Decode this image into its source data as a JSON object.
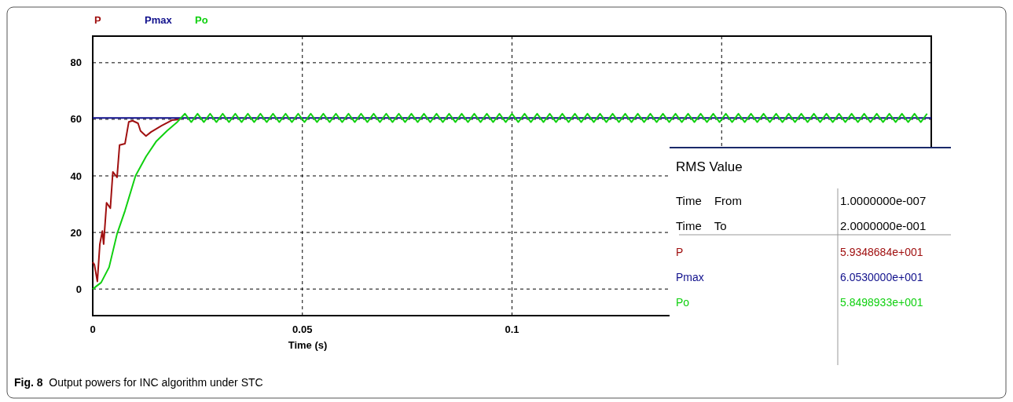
{
  "chart_data": {
    "type": "line",
    "xlabel": "Time (s)",
    "xlim": [
      0,
      0.2
    ],
    "ylim": [
      -9.4,
      89.4
    ],
    "xticks": [
      0,
      0.05,
      0.1,
      {
        "value": 0.15,
        "label": null
      }
    ],
    "yticks": [
      0,
      20,
      40,
      60,
      80
    ],
    "grid": true,
    "legend": "top left",
    "line_style": "solid",
    "marker": "none",
    "series": [
      {
        "name": "P",
        "color": "#a01010",
        "x": [
          0,
          0.0004,
          0.0011,
          0.0017,
          0.0023,
          0.0026,
          0.0033,
          0.0042,
          0.0048,
          0.0058,
          0.0064,
          0.0077,
          0.0086,
          0.0095,
          0.0108,
          0.0114,
          0.0127,
          0.0139,
          0.0164,
          0.0189,
          0.0208
        ],
        "values": [
          9.5,
          8.6,
          2.7,
          15.9,
          20.5,
          15.9,
          30.5,
          28.6,
          41.4,
          39.5,
          50.9,
          51.4,
          59.1,
          59.5,
          58.6,
          55.9,
          54.1,
          55.5,
          57.7,
          59.7,
          60
        ]
      },
      {
        "name": "Pmax",
        "color": "#10108c",
        "x": [
          0,
          0.2
        ],
        "values": [
          60.5,
          60.5
        ]
      },
      {
        "name": "Po",
        "color": "#10d010",
        "x": [
          0,
          0.002,
          0.0039,
          0.0058,
          0.0077,
          0.0102,
          0.0127,
          0.0152,
          0.0177,
          0.0202,
          0.022,
          0.0235,
          0.025,
          0.0265,
          0.028,
          0.0295,
          0.031,
          0.0325,
          0.034,
          0.0355,
          0.037,
          0.0385,
          0.04,
          0.0415,
          0.043,
          0.0445,
          0.046,
          0.0475,
          0.049,
          0.0505,
          0.052,
          0.0535,
          0.055,
          0.0565,
          0.058,
          0.0595,
          0.061,
          0.0625,
          0.064,
          0.0655,
          0.067,
          0.0685,
          0.07,
          0.0715,
          0.073,
          0.0745,
          0.076,
          0.0775,
          0.079,
          0.0805,
          0.082,
          0.0835,
          0.085,
          0.0865,
          0.088,
          0.0895,
          0.091,
          0.0925,
          0.094,
          0.0955,
          0.097,
          0.0985,
          0.1,
          0.1015,
          0.103,
          0.1045,
          0.106,
          0.1075,
          0.109,
          0.1105,
          0.112,
          0.1135,
          0.115,
          0.1165,
          0.118,
          0.1195,
          0.121,
          0.1225,
          0.124,
          0.1255,
          0.127,
          0.1285,
          0.13,
          0.1315,
          0.133,
          0.1345,
          0.136,
          0.1375,
          0.139,
          0.1405,
          0.142,
          0.1435,
          0.145,
          0.1465,
          0.148,
          0.1495,
          0.151,
          0.1525,
          0.154,
          0.1555,
          0.157,
          0.1585,
          0.16,
          0.1615,
          0.163,
          0.1645,
          0.166,
          0.1675,
          0.169,
          0.1705,
          0.172,
          0.1735,
          0.175,
          0.1765,
          0.178,
          0.1795,
          0.181,
          0.1825,
          0.184,
          0.1855,
          0.187,
          0.1885,
          0.19,
          0.1915,
          0.193,
          0.1945,
          0.196,
          0.1975,
          0.199
        ],
        "values": [
          0,
          2.3,
          7.7,
          19.5,
          27.7,
          40,
          46.8,
          52.3,
          55.9,
          59.1,
          62,
          59,
          62,
          59,
          62,
          59,
          62,
          59,
          62,
          59,
          62,
          59,
          62,
          59,
          62,
          59,
          62,
          59,
          62,
          59,
          62,
          59,
          62,
          59,
          62,
          59,
          62,
          59,
          62,
          59,
          62,
          59,
          62,
          59,
          62,
          59,
          62,
          59,
          62,
          59,
          62,
          59,
          62,
          59,
          62,
          59,
          62,
          59,
          62,
          59,
          62,
          59,
          62,
          59,
          62,
          59,
          62,
          59,
          62,
          59,
          62,
          59,
          62,
          59,
          62,
          59,
          62,
          59,
          62,
          59,
          62,
          59,
          62,
          59,
          62,
          59,
          62,
          59,
          62,
          59,
          62,
          59,
          62,
          59,
          62,
          59,
          62,
          59,
          62,
          59,
          62,
          59,
          62,
          59,
          62,
          59,
          62,
          59,
          62,
          59,
          62,
          59,
          62,
          59,
          62,
          59,
          62,
          59,
          62,
          59,
          62,
          59,
          62,
          59,
          62,
          59,
          62,
          59,
          62
        ]
      }
    ],
    "annotations": [
      "RMS Value",
      "Time From",
      "1.0000000e-007",
      "Time To",
      "2.0000000e-001",
      "5.9348684e+001",
      "6.0530000e+001",
      "5.8498933e+001",
      "Fig. 8 Output powers for INC algorithm under STC"
    ]
  }
}
